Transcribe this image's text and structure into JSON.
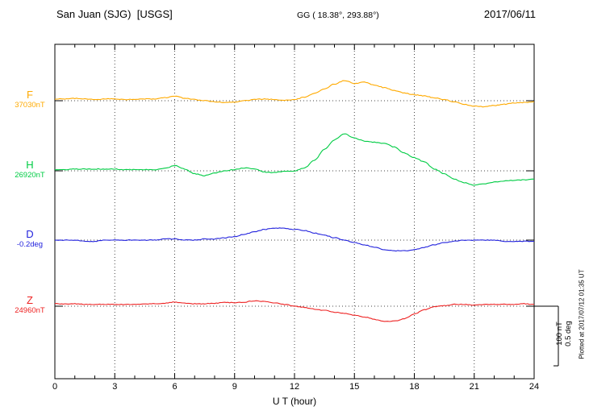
{
  "header": {
    "station": "San Juan (SJG)  [USGS]",
    "coords": "GG ( 18.38°, 293.88°)",
    "date": "2017/06/11"
  },
  "xaxis": {
    "label": "U T (hour)",
    "ticks": [
      0,
      3,
      6,
      9,
      12,
      15,
      18,
      21,
      24
    ],
    "min": 0,
    "max": 24
  },
  "scale_bar": {
    "nt": "100 nT",
    "deg": "0.5 deg"
  },
  "footnote": "Plotted at 2017/07/12 01:35 UT",
  "chart_data": {
    "type": "line",
    "title": "San Juan (SJG) [USGS] magnetogram 2017/06/11",
    "xlabel": "U T (hour)",
    "x_range_hours": [
      0,
      24
    ],
    "sample_step_hours": 0.5,
    "grid": "dotted vertical every 3 h, dotted horizontal baseline per trace",
    "scale": {
      "nt_per_bar": 100,
      "deg_per_bar": 0.5
    },
    "series": [
      {
        "name": "F",
        "unit": "nT",
        "baseline_value": 37030,
        "baseline_label": "37030nT",
        "color": "#FFAA00",
        "offsets_from_baseline": [
          3,
          3,
          4,
          3,
          2,
          3,
          3,
          2,
          2,
          3,
          3,
          5,
          8,
          4,
          2,
          0,
          -2,
          -3,
          -2,
          0,
          2,
          3,
          2,
          1,
          2,
          6,
          12,
          20,
          28,
          34,
          29,
          31,
          26,
          22,
          17,
          13,
          10,
          8,
          5,
          2,
          -2,
          -6,
          -9,
          -10,
          -8,
          -6,
          -4,
          -3,
          -2
        ]
      },
      {
        "name": "H",
        "unit": "nT",
        "baseline_value": 26920,
        "baseline_label": "26920nT",
        "color": "#00CC44",
        "offsets_from_baseline": [
          2,
          2,
          3,
          3,
          3,
          3,
          3,
          2,
          2,
          2,
          2,
          4,
          9,
          3,
          -5,
          -8,
          -4,
          0,
          2,
          5,
          3,
          -2,
          -3,
          -1,
          0,
          5,
          18,
          36,
          52,
          62,
          55,
          50,
          48,
          46,
          40,
          30,
          22,
          15,
          3,
          -5,
          -14,
          -20,
          -24,
          -22,
          -19,
          -17,
          -16,
          -15,
          -14
        ]
      },
      {
        "name": "D",
        "unit": "deg",
        "baseline_value": -0.2,
        "baseline_label": "-0.2deg",
        "color": "#2222DD",
        "offsets_from_baseline": [
          0,
          0,
          0,
          -0.01,
          -0.01,
          0,
          0,
          0,
          0,
          0,
          0,
          0.01,
          0.01,
          0,
          0,
          0.01,
          0.01,
          0.02,
          0.03,
          0.05,
          0.07,
          0.09,
          0.1,
          0.1,
          0.09,
          0.08,
          0.06,
          0.04,
          0.02,
          0,
          -0.02,
          -0.04,
          -0.06,
          -0.08,
          -0.09,
          -0.09,
          -0.08,
          -0.06,
          -0.04,
          -0.02,
          -0.01,
          0,
          0,
          0,
          0,
          -0.01,
          -0.01,
          -0.01,
          -0.01
        ]
      },
      {
        "name": "Z",
        "unit": "nT",
        "baseline_value": 24960,
        "baseline_label": "24960nT",
        "color": "#EE2222",
        "offsets_from_baseline": [
          4,
          4,
          4,
          3,
          3,
          3,
          3,
          3,
          3,
          4,
          4,
          5,
          7,
          5,
          4,
          4,
          5,
          6,
          6,
          7,
          9,
          8,
          6,
          3,
          0,
          -2,
          -5,
          -7,
          -10,
          -12,
          -15,
          -18,
          -22,
          -26,
          -25,
          -21,
          -13,
          -6,
          -1,
          1,
          3,
          3,
          2,
          3,
          3,
          3,
          3,
          4,
          3
        ]
      }
    ]
  }
}
